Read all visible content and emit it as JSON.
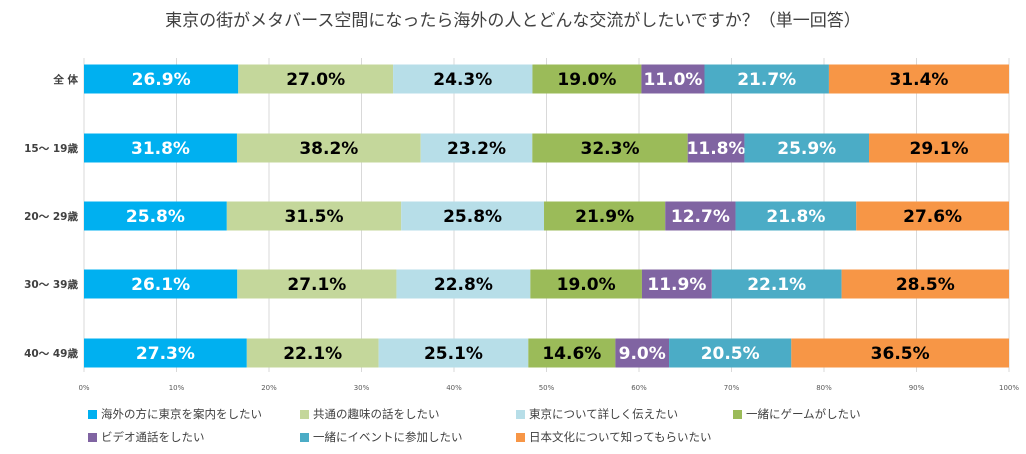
{
  "chart_data": {
    "type": "bar",
    "stacked": true,
    "orientation": "horizontal",
    "title": "東京の街がメタバース空間になったら海外の人とどんな交流がしたいですか？（単一回答）",
    "categories": [
      "全 体",
      "15～ 19歳",
      "20～ 29歳",
      "30～ 39歳",
      "40～ 49歳"
    ],
    "x_ticks": [
      "0%",
      "10%",
      "20%",
      "30%",
      "40%",
      "50%",
      "60%",
      "70%",
      "80%",
      "90%",
      "100%"
    ],
    "series": [
      {
        "name": "海外の方に東京を案内をしたい",
        "color": "#00B0F0",
        "label_color": "#ffffff",
        "values": [
          26.9,
          31.8,
          25.8,
          26.1,
          27.3
        ]
      },
      {
        "name": "共通の趣味の話をしたい",
        "color": "#C4D79B",
        "label_color": "#000000",
        "values": [
          27.0,
          38.2,
          31.5,
          27.1,
          22.1
        ]
      },
      {
        "name": "東京について詳しく伝えたい",
        "color": "#B7DEE8",
        "label_color": "#000000",
        "values": [
          24.3,
          23.2,
          25.8,
          22.8,
          25.1
        ]
      },
      {
        "name": "一緒にゲームがしたい",
        "color": "#9BBB59",
        "label_color": "#000000",
        "values": [
          19.0,
          32.3,
          21.9,
          19.0,
          14.6
        ]
      },
      {
        "name": "ビデオ通話をしたい",
        "color": "#8064A2",
        "label_color": "#ffffff",
        "values": [
          11.0,
          11.8,
          12.7,
          11.9,
          9.0
        ]
      },
      {
        "name": "一緒にイベントに参加したい",
        "color": "#4BACC6",
        "label_color": "#ffffff",
        "values": [
          21.7,
          25.9,
          21.8,
          22.1,
          20.5
        ]
      },
      {
        "name": "日本文化について知ってもらいたい",
        "color": "#F79646",
        "label_color": "#000000",
        "values": [
          31.4,
          29.1,
          27.6,
          28.5,
          36.5
        ]
      }
    ]
  }
}
